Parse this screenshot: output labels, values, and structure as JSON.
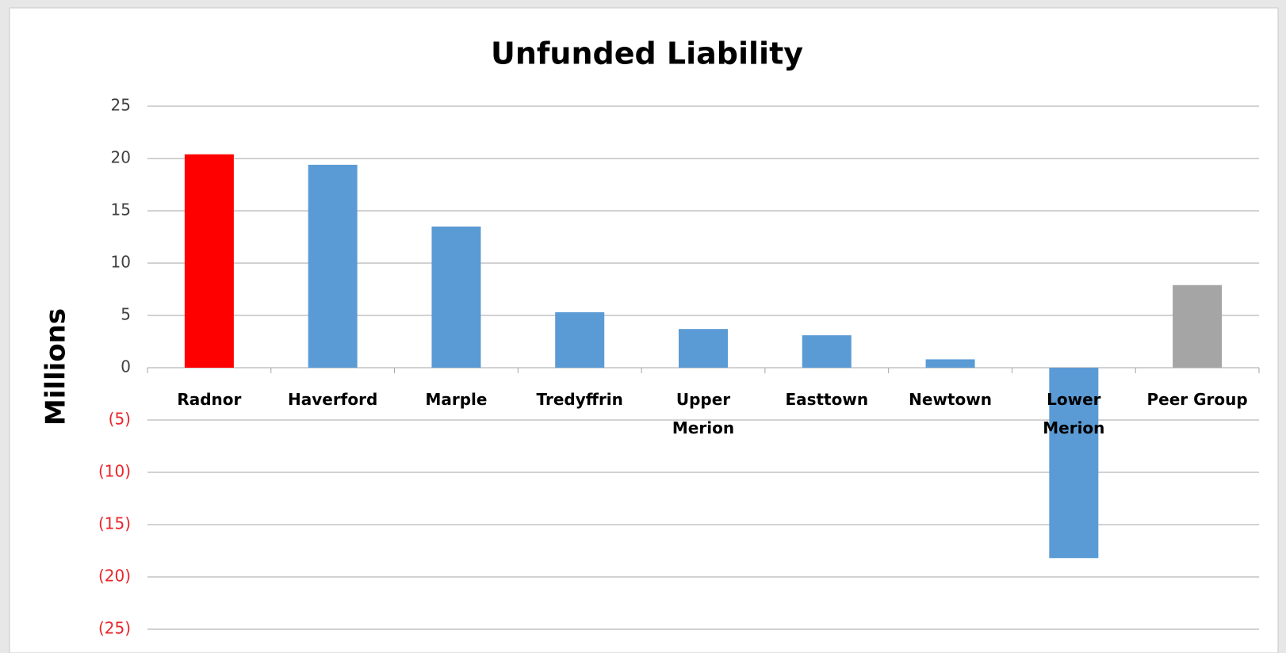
{
  "chart_data": {
    "type": "bar",
    "title": "Unfunded Liability",
    "y_label": "Millions",
    "categories": [
      "Radnor",
      "Haverford",
      "Marple",
      "Tredyffrin",
      "Upper\nMerion",
      "Easttown",
      "Newtown",
      "Lower\nMerion",
      "Peer Group"
    ],
    "values": [
      20.4,
      19.4,
      13.5,
      5.3,
      3.7,
      3.1,
      0.8,
      -18.2,
      7.9
    ],
    "colors": [
      "#ff0000",
      "#5b9bd5",
      "#5b9bd5",
      "#5b9bd5",
      "#5b9bd5",
      "#5b9bd5",
      "#5b9bd5",
      "#5b9bd5",
      "#a5a5a5"
    ],
    "ylim": [
      -25,
      25
    ],
    "yticks": [
      {
        "value": -25,
        "label": "(25)"
      },
      {
        "value": -20,
        "label": "(20)"
      },
      {
        "value": -15,
        "label": "(15)"
      },
      {
        "value": -10,
        "label": "(10)"
      },
      {
        "value": -5,
        "label": "(5)"
      },
      0,
      5,
      10,
      15,
      20,
      25
    ],
    "negative_tick_color": "#e8262b",
    "grid": true
  }
}
